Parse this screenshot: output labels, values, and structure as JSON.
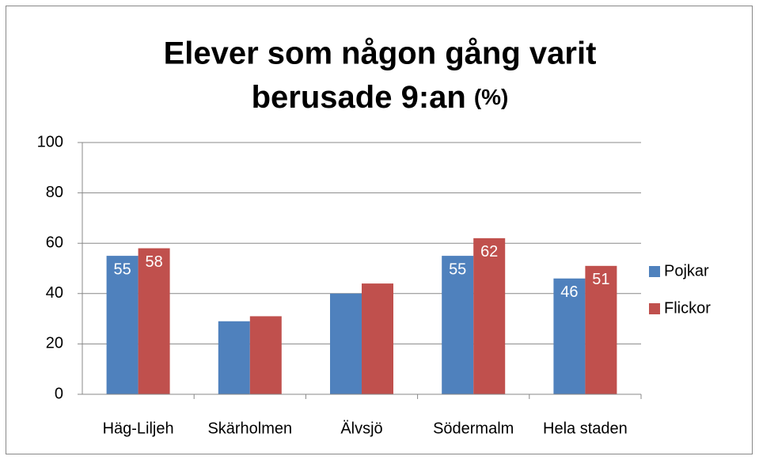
{
  "chart_data": {
    "type": "bar",
    "title": [
      "Elever som någon gång varit",
      "berusade 9:an"
    ],
    "title_unit": "(%)",
    "categories": [
      "Häg-Liljeh",
      "Skärholmen",
      "Älvsjö",
      "Södermalm",
      "Hela staden"
    ],
    "series": [
      {
        "name": "Pojkar",
        "color": "#4f81bd",
        "values": [
          55,
          29,
          40,
          55,
          46
        ],
        "value_labels": [
          "55",
          null,
          null,
          "55",
          "46"
        ]
      },
      {
        "name": "Flickor",
        "color": "#c0504d",
        "values": [
          58,
          31,
          44,
          62,
          51
        ],
        "value_labels": [
          "58",
          null,
          null,
          "62",
          "51"
        ]
      }
    ],
    "ylim": [
      0,
      100
    ],
    "yticks": [
      0,
      20,
      40,
      60,
      80,
      100
    ],
    "grid": true,
    "legend": "right"
  }
}
